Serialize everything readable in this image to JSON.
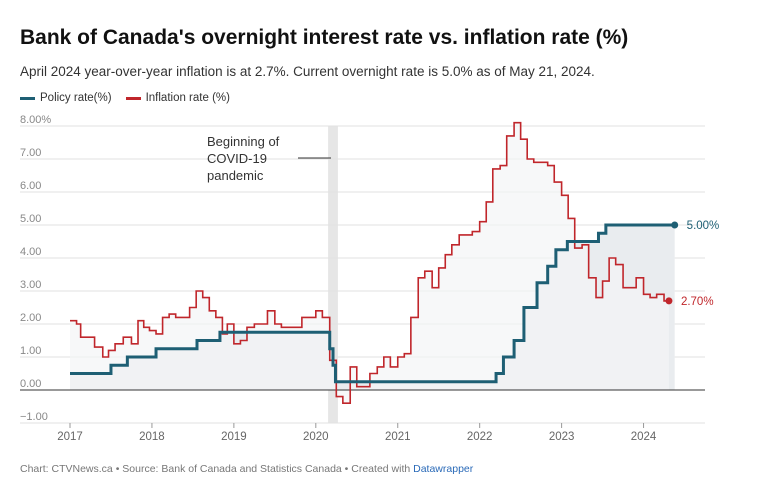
{
  "title": "Bank of Canada's overnight interest rate vs. inflation rate (%)",
  "subtitle": "April 2024 year-over-year inflation is at 2.7%. Current overnight rate is 5.0% as of May 21, 2024.",
  "legend": [
    {
      "label": "Policy rate(%)",
      "color": "#1e5f74"
    },
    {
      "label": "Inflation rate (%)",
      "color": "#c0262b"
    }
  ],
  "footer": {
    "text": "Chart: CTVNews.ca • Source: Bank of Canada and Statistics Canada • Created with ",
    "link": "Datawrapper"
  },
  "annotation": {
    "lines": [
      "Beginning of",
      "COVID-19",
      "pandemic"
    ]
  },
  "chart_data": {
    "type": "line",
    "ylim": [
      -1,
      8
    ],
    "yticks": [
      {
        "value": 8,
        "label": "8.00%"
      },
      {
        "value": 7,
        "label": "7.00"
      },
      {
        "value": 6,
        "label": "6.00"
      },
      {
        "value": 5,
        "label": "5.00"
      },
      {
        "value": 4,
        "label": "4.00"
      },
      {
        "value": 3,
        "label": "3.00"
      },
      {
        "value": 2,
        "label": "2.00"
      },
      {
        "value": 1,
        "label": "1.00"
      },
      {
        "value": 0,
        "label": "0.00"
      },
      {
        "value": -1,
        "label": "−1.00"
      }
    ],
    "xlim": [
      2017,
      2024.75
    ],
    "xticks": [
      {
        "value": 2017,
        "label": "2017"
      },
      {
        "value": 2018,
        "label": "2018"
      },
      {
        "value": 2019,
        "label": "2019"
      },
      {
        "value": 2020,
        "label": "2020"
      },
      {
        "value": 2021,
        "label": "2021"
      },
      {
        "value": 2022,
        "label": "2022"
      },
      {
        "value": 2023,
        "label": "2023"
      },
      {
        "value": 2024,
        "label": "2024"
      }
    ],
    "covid_band": [
      2020.15,
      2020.27
    ],
    "series": [
      {
        "name": "Policy rate(%)",
        "color": "#1e5f74",
        "end_label": "5.00%",
        "step": true,
        "area": true,
        "points": [
          [
            2017.0,
            0.5
          ],
          [
            2017.5,
            0.75
          ],
          [
            2017.7,
            1.0
          ],
          [
            2018.05,
            1.25
          ],
          [
            2018.55,
            1.5
          ],
          [
            2018.83,
            1.75
          ],
          [
            2020.17,
            1.25
          ],
          [
            2020.21,
            0.75
          ],
          [
            2020.24,
            0.25
          ],
          [
            2022.2,
            0.5
          ],
          [
            2022.29,
            1.0
          ],
          [
            2022.42,
            1.5
          ],
          [
            2022.54,
            2.5
          ],
          [
            2022.7,
            3.25
          ],
          [
            2022.83,
            3.75
          ],
          [
            2022.93,
            4.25
          ],
          [
            2023.07,
            4.5
          ],
          [
            2023.45,
            4.75
          ],
          [
            2023.54,
            5.0
          ],
          [
            2024.38,
            5.0
          ]
        ]
      },
      {
        "name": "Inflation rate (%)",
        "color": "#c0262b",
        "end_label": "2.70%",
        "step": true,
        "area": false,
        "points": [
          [
            2017.0,
            2.1
          ],
          [
            2017.08,
            2.0
          ],
          [
            2017.13,
            1.6
          ],
          [
            2017.3,
            1.3
          ],
          [
            2017.38,
            1.3
          ],
          [
            2017.4,
            1.0
          ],
          [
            2017.47,
            1.2
          ],
          [
            2017.55,
            1.4
          ],
          [
            2017.65,
            1.6
          ],
          [
            2017.75,
            1.4
          ],
          [
            2017.83,
            2.1
          ],
          [
            2017.9,
            1.9
          ],
          [
            2017.97,
            1.8
          ],
          [
            2018.05,
            1.7
          ],
          [
            2018.13,
            2.2
          ],
          [
            2018.21,
            2.3
          ],
          [
            2018.29,
            2.2
          ],
          [
            2018.38,
            2.2
          ],
          [
            2018.46,
            2.5
          ],
          [
            2018.54,
            3.0
          ],
          [
            2018.62,
            2.8
          ],
          [
            2018.7,
            2.4
          ],
          [
            2018.78,
            2.2
          ],
          [
            2018.86,
            1.7
          ],
          [
            2018.92,
            2.0
          ],
          [
            2019.0,
            1.4
          ],
          [
            2019.08,
            1.5
          ],
          [
            2019.16,
            1.9
          ],
          [
            2019.25,
            2.0
          ],
          [
            2019.33,
            2.0
          ],
          [
            2019.41,
            2.4
          ],
          [
            2019.5,
            2.0
          ],
          [
            2019.58,
            1.9
          ],
          [
            2019.66,
            1.9
          ],
          [
            2019.75,
            1.9
          ],
          [
            2019.83,
            2.2
          ],
          [
            2019.91,
            2.2
          ],
          [
            2020.0,
            2.4
          ],
          [
            2020.08,
            2.2
          ],
          [
            2020.17,
            0.9
          ],
          [
            2020.25,
            -0.2
          ],
          [
            2020.33,
            -0.4
          ],
          [
            2020.42,
            0.7
          ],
          [
            2020.5,
            0.1
          ],
          [
            2020.58,
            0.1
          ],
          [
            2020.66,
            0.5
          ],
          [
            2020.75,
            0.7
          ],
          [
            2020.83,
            1.0
          ],
          [
            2020.91,
            0.7
          ],
          [
            2021.0,
            1.0
          ],
          [
            2021.08,
            1.1
          ],
          [
            2021.16,
            2.2
          ],
          [
            2021.25,
            3.4
          ],
          [
            2021.33,
            3.6
          ],
          [
            2021.42,
            3.1
          ],
          [
            2021.5,
            3.7
          ],
          [
            2021.58,
            4.1
          ],
          [
            2021.66,
            4.4
          ],
          [
            2021.75,
            4.7
          ],
          [
            2021.83,
            4.7
          ],
          [
            2021.91,
            4.8
          ],
          [
            2022.0,
            5.1
          ],
          [
            2022.08,
            5.7
          ],
          [
            2022.16,
            6.7
          ],
          [
            2022.25,
            6.8
          ],
          [
            2022.33,
            7.7
          ],
          [
            2022.42,
            8.1
          ],
          [
            2022.5,
            7.6
          ],
          [
            2022.58,
            7.0
          ],
          [
            2022.66,
            6.9
          ],
          [
            2022.75,
            6.9
          ],
          [
            2022.83,
            6.8
          ],
          [
            2022.91,
            6.3
          ],
          [
            2023.0,
            5.9
          ],
          [
            2023.08,
            5.2
          ],
          [
            2023.16,
            4.3
          ],
          [
            2023.25,
            4.4
          ],
          [
            2023.33,
            3.4
          ],
          [
            2023.42,
            2.8
          ],
          [
            2023.5,
            3.3
          ],
          [
            2023.58,
            4.0
          ],
          [
            2023.66,
            3.8
          ],
          [
            2023.75,
            3.1
          ],
          [
            2023.83,
            3.1
          ],
          [
            2023.91,
            3.4
          ],
          [
            2024.0,
            2.9
          ],
          [
            2024.08,
            2.8
          ],
          [
            2024.16,
            2.9
          ],
          [
            2024.25,
            2.7
          ],
          [
            2024.31,
            2.7
          ]
        ]
      }
    ]
  }
}
